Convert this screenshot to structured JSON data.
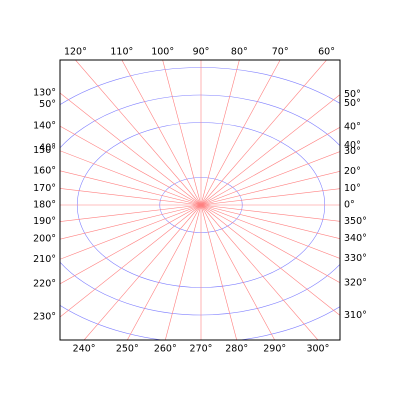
{
  "chart_data": {
    "type": "polar-grid",
    "angles": [
      {
        "value": 0,
        "label": "0°"
      },
      {
        "value": 10,
        "label": "10°"
      },
      {
        "value": 20,
        "label": "20°"
      },
      {
        "value": 30,
        "label": "30°"
      },
      {
        "value": 40,
        "label": "40°"
      },
      {
        "value": 50,
        "label": "50°"
      },
      {
        "value": 60,
        "label": "60°"
      },
      {
        "value": 70,
        "label": "70°"
      },
      {
        "value": 80,
        "label": "80°"
      },
      {
        "value": 90,
        "label": "90°"
      },
      {
        "value": 100,
        "label": "100°"
      },
      {
        "value": 110,
        "label": "110°"
      },
      {
        "value": 120,
        "label": "120°"
      },
      {
        "value": 130,
        "label": "130°"
      },
      {
        "value": 140,
        "label": "140°"
      },
      {
        "value": 150,
        "label": "150°"
      },
      {
        "value": 160,
        "label": "160°"
      },
      {
        "value": 170,
        "label": "170°"
      },
      {
        "value": 180,
        "label": "180°"
      },
      {
        "value": 190,
        "label": "190°"
      },
      {
        "value": 200,
        "label": "200°"
      },
      {
        "value": 210,
        "label": "210°"
      },
      {
        "value": 220,
        "label": "220°"
      },
      {
        "value": 230,
        "label": "230°"
      },
      {
        "value": 240,
        "label": "240°"
      },
      {
        "value": 250,
        "label": "250°"
      },
      {
        "value": 260,
        "label": "260°"
      },
      {
        "value": 270,
        "label": "270°"
      },
      {
        "value": 280,
        "label": "280°"
      },
      {
        "value": 290,
        "label": "290°"
      },
      {
        "value": 300,
        "label": "300°"
      },
      {
        "value": 310,
        "label": "310°"
      },
      {
        "value": 320,
        "label": "320°"
      },
      {
        "value": 330,
        "label": "330°"
      },
      {
        "value": 340,
        "label": "340°"
      },
      {
        "value": 350,
        "label": "350°"
      }
    ],
    "rings": [
      10,
      {
        "value": 30,
        "label": "30°"
      },
      {
        "value": 40,
        "label": "40°"
      },
      {
        "value": 50,
        "label": "50°"
      }
    ],
    "angle_color": "#ff8080",
    "ring_color": "#8080ff",
    "grid": true
  }
}
